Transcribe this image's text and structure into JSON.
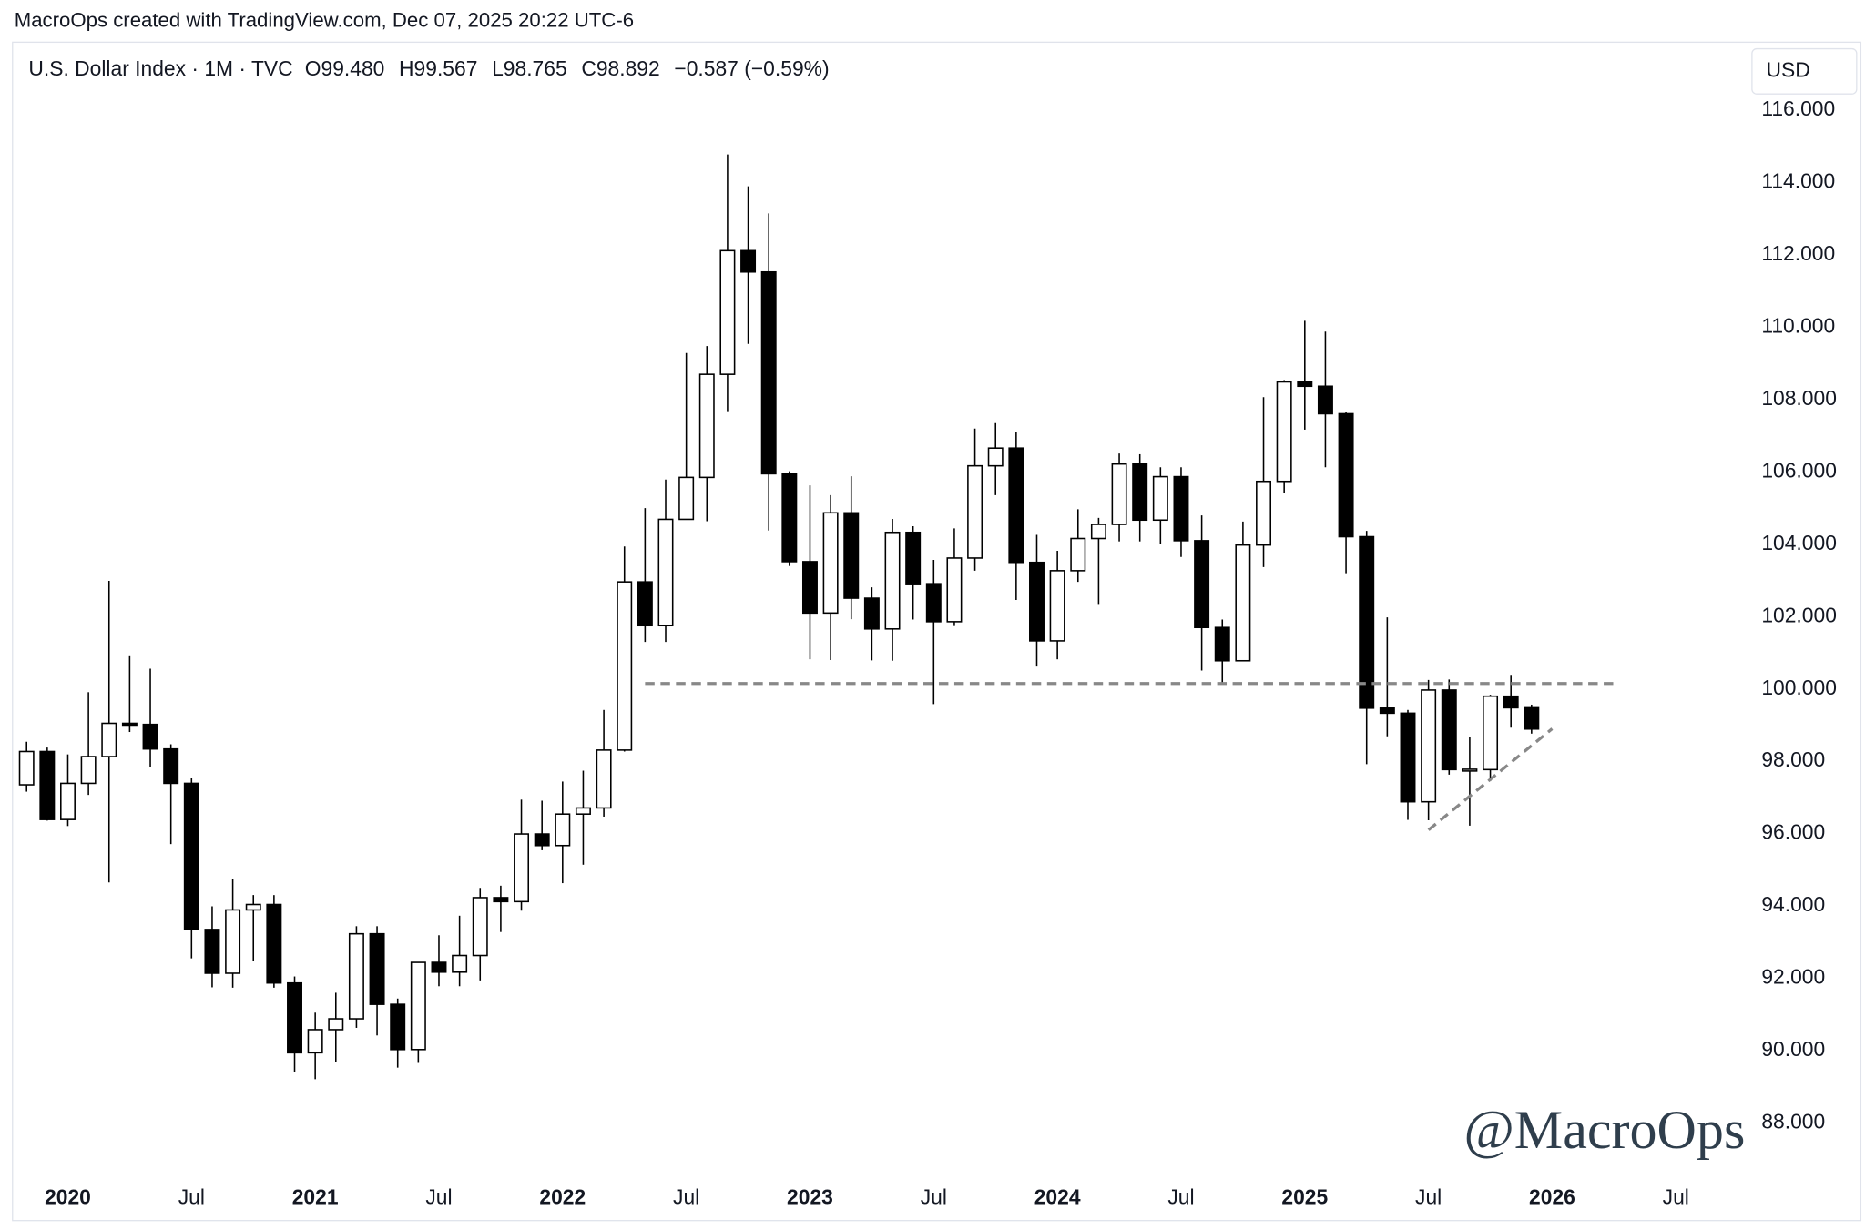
{
  "header": {
    "credit": "MacroOps created with TradingView.com, Dec 07, 2025 20:22 UTC-6"
  },
  "chart_data": {
    "type": "candlestick",
    "legend": {
      "symbol": "U.S. Dollar Index · 1M · TVC",
      "open": "O99.480",
      "high": "H99.567",
      "low": "L98.765",
      "close": "C98.892",
      "change": "−0.587 (−0.59%)"
    },
    "currency": "USD",
    "watermark": "@MacroOps",
    "x": [
      "2019-11",
      "2019-12",
      "2020-01",
      "2020-02",
      "2020-03",
      "2020-04",
      "2020-05",
      "2020-06",
      "2020-07",
      "2020-08",
      "2020-09",
      "2020-10",
      "2020-11",
      "2020-12",
      "2021-01",
      "2021-02",
      "2021-03",
      "2021-04",
      "2021-05",
      "2021-06",
      "2021-07",
      "2021-08",
      "2021-09",
      "2021-10",
      "2021-11",
      "2021-12",
      "2022-01",
      "2022-02",
      "2022-03",
      "2022-04",
      "2022-05",
      "2022-06",
      "2022-07",
      "2022-08",
      "2022-09",
      "2022-10",
      "2022-11",
      "2022-12",
      "2023-01",
      "2023-02",
      "2023-03",
      "2023-04",
      "2023-05",
      "2023-06",
      "2023-07",
      "2023-08",
      "2023-09",
      "2023-10",
      "2023-11",
      "2023-12",
      "2024-01",
      "2024-02",
      "2024-03",
      "2024-04",
      "2024-05",
      "2024-06",
      "2024-07",
      "2024-08",
      "2024-09",
      "2024-10",
      "2024-11",
      "2024-12",
      "2025-01",
      "2025-02",
      "2025-03",
      "2025-04",
      "2025-05",
      "2025-06",
      "2025-07",
      "2025-08",
      "2025-09",
      "2025-10",
      "2025-11",
      "2025-12"
    ],
    "open": [
      97.35,
      98.27,
      96.39,
      97.39,
      98.13,
      99.05,
      99.02,
      98.34,
      97.39,
      93.35,
      92.14,
      93.89,
      94.04,
      91.87,
      89.94,
      90.58,
      90.88,
      93.23,
      91.28,
      90.03,
      92.44,
      92.17,
      92.63,
      94.23,
      94.12,
      95.99,
      95.67,
      96.54,
      96.71,
      98.31,
      102.96,
      101.75,
      104.69,
      105.85,
      108.7,
      112.12,
      111.53,
      105.95,
      103.52,
      102.1,
      104.87,
      102.51,
      101.66,
      104.33,
      102.91,
      101.86,
      103.62,
      106.17,
      106.66,
      103.5,
      101.33,
      103.27,
      104.16,
      104.55,
      106.22,
      104.67,
      105.87,
      104.1,
      101.7,
      100.78,
      103.98,
      105.74,
      108.49,
      108.37,
      107.61,
      104.21,
      99.47,
      99.33,
      96.88,
      99.97,
      97.77,
      97.77,
      99.8,
      99.48
    ],
    "high": [
      98.54,
      98.38,
      98.19,
      99.91,
      102.99,
      100.93,
      100.56,
      98.47,
      97.54,
      93.99,
      94.74,
      94.3,
      94.3,
      92.05,
      91.05,
      91.6,
      93.44,
      93.44,
      91.44,
      92.41,
      93.19,
      93.73,
      94.5,
      94.56,
      96.94,
      96.91,
      97.44,
      97.74,
      99.42,
      103.94,
      105.0,
      105.79,
      109.29,
      109.48,
      114.78,
      113.9,
      113.15,
      106.02,
      105.63,
      105.36,
      105.88,
      102.81,
      104.7,
      104.5,
      103.57,
      104.44,
      107.2,
      107.35,
      107.11,
      104.26,
      103.82,
      104.97,
      104.73,
      106.51,
      106.49,
      106.13,
      106.13,
      104.8,
      101.92,
      104.63,
      108.07,
      108.54,
      110.18,
      109.88,
      107.65,
      104.37,
      101.98,
      99.42,
      100.25,
      100.26,
      98.68,
      99.84,
      100.39,
      99.567
    ],
    "low": [
      97.16,
      96.36,
      96.21,
      97.07,
      94.65,
      98.81,
      97.84,
      95.71,
      92.55,
      91.75,
      91.74,
      92.47,
      91.74,
      89.42,
      89.21,
      89.68,
      90.63,
      90.42,
      89.53,
      89.66,
      91.78,
      91.78,
      91.94,
      93.28,
      93.87,
      95.54,
      94.63,
      95.14,
      96.47,
      98.27,
      101.3,
      101.3,
      104.69,
      104.64,
      107.68,
      109.54,
      104.38,
      103.4,
      100.82,
      100.8,
      101.93,
      100.79,
      100.78,
      101.92,
      99.58,
      101.74,
      103.27,
      105.36,
      102.46,
      100.62,
      100.82,
      102.96,
      102.35,
      104.08,
      104.08,
      104.0,
      103.65,
      100.51,
      100.16,
      100.76,
      103.37,
      105.42,
      107.17,
      106.13,
      103.2,
      97.92,
      98.69,
      96.38,
      96.37,
      97.63,
      96.22,
      97.45,
      98.93,
      98.765
    ],
    "close": [
      98.27,
      96.39,
      97.39,
      98.13,
      99.05,
      99.02,
      98.34,
      97.39,
      93.35,
      92.14,
      93.89,
      94.04,
      91.87,
      89.94,
      90.58,
      90.88,
      93.23,
      91.28,
      90.03,
      92.44,
      92.17,
      92.63,
      94.23,
      94.12,
      95.99,
      95.67,
      96.54,
      96.71,
      98.31,
      102.96,
      101.75,
      104.69,
      105.85,
      108.7,
      112.12,
      111.53,
      105.95,
      103.52,
      102.1,
      104.87,
      102.51,
      101.66,
      104.33,
      102.91,
      101.86,
      103.62,
      106.17,
      106.66,
      103.5,
      101.33,
      103.27,
      104.16,
      104.55,
      106.22,
      104.67,
      105.87,
      104.1,
      101.7,
      100.78,
      103.98,
      105.74,
      108.49,
      108.37,
      107.61,
      104.21,
      99.47,
      99.33,
      96.88,
      99.97,
      97.77,
      97.78,
      99.8,
      99.48,
      98.892
    ],
    "up_color": "#ffffff",
    "down_color": "#000000",
    "edge_color": "#000000",
    "xlim": [
      "2019-10",
      "2026-10"
    ],
    "xticks": [
      {
        "value": "2020-01",
        "label": "2020"
      },
      {
        "value": "2020-07",
        "label": "Jul"
      },
      {
        "value": "2021-01",
        "label": "2021"
      },
      {
        "value": "2021-07",
        "label": "Jul"
      },
      {
        "value": "2022-01",
        "label": "2022"
      },
      {
        "value": "2022-07",
        "label": "Jul"
      },
      {
        "value": "2023-01",
        "label": "2023"
      },
      {
        "value": "2023-07",
        "label": "Jul"
      },
      {
        "value": "2024-01",
        "label": "2024"
      },
      {
        "value": "2024-07",
        "label": "Jul"
      },
      {
        "value": "2025-01",
        "label": "2025"
      },
      {
        "value": "2025-07",
        "label": "Jul"
      },
      {
        "value": "2026-01",
        "label": "2026"
      },
      {
        "value": "2026-07",
        "label": "Jul"
      }
    ],
    "ylim": [
      86.5,
      117.9
    ],
    "yticks": [
      {
        "value": 116,
        "label": "116.000"
      },
      {
        "value": 114,
        "label": "114.000"
      },
      {
        "value": 112,
        "label": "112.000"
      },
      {
        "value": 110,
        "label": "110.000"
      },
      {
        "value": 108,
        "label": "108.000"
      },
      {
        "value": 106,
        "label": "106.000"
      },
      {
        "value": 104,
        "label": "104.000"
      },
      {
        "value": 102,
        "label": "102.000"
      },
      {
        "value": 100,
        "label": "100.000"
      },
      {
        "value": 98,
        "label": "98.000"
      },
      {
        "value": 96,
        "label": "96.000"
      },
      {
        "value": 94,
        "label": "94.000"
      },
      {
        "value": 92,
        "label": "92.000"
      },
      {
        "value": 90,
        "label": "90.000"
      },
      {
        "value": 88,
        "label": "88.000"
      }
    ],
    "grid": false,
    "trendlines": [
      {
        "color": "#888888",
        "points": [
          {
            "x": "2022-05",
            "y": 100.15
          },
          {
            "x": "2026-04",
            "y": 100.15
          }
        ]
      },
      {
        "color": "#888888",
        "points": [
          {
            "x": "2025-07",
            "y": 96.1
          },
          {
            "x": "2026-01",
            "y": 98.9
          }
        ]
      }
    ]
  }
}
